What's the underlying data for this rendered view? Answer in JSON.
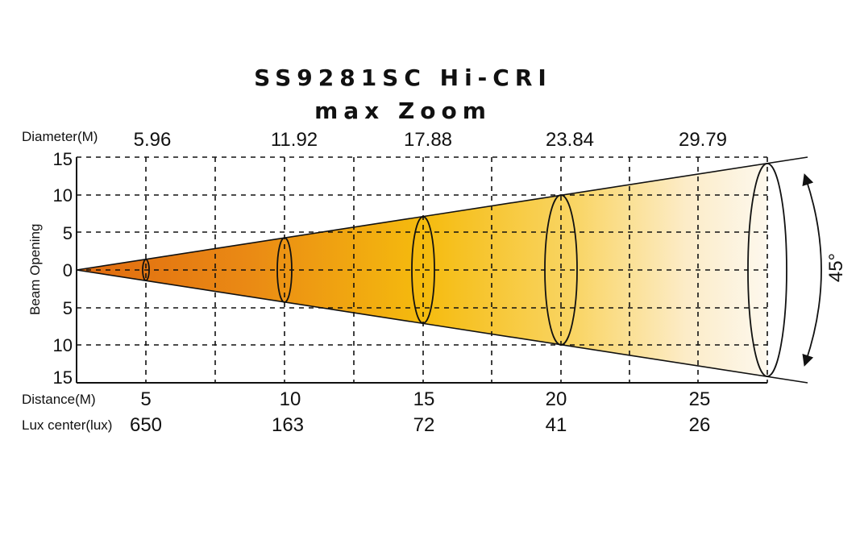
{
  "title": "SS9281SC Hi-CRI",
  "subtitle": "max Zoom",
  "beam_angle": "45°",
  "labels": {
    "diameter": "Diameter(M)",
    "beam_opening": "Beam Opening",
    "distance": "Distance(M)",
    "lux_center": "Lux center(lux)"
  },
  "y_ticks": [
    "15",
    "10",
    "5",
    "0",
    "5",
    "10",
    "15"
  ],
  "diameters": [
    "5.96",
    "11.92",
    "17.88",
    "23.84",
    "29.79"
  ],
  "distances": [
    "5",
    "10",
    "15",
    "20",
    "25"
  ],
  "lux": [
    "650",
    "163",
    "72",
    "41",
    "26"
  ],
  "colors": {
    "beam_dark": "#e57a12",
    "beam_mid": "#f5b80c",
    "beam_light": "#fdf8ee",
    "lines": "#111111"
  }
}
